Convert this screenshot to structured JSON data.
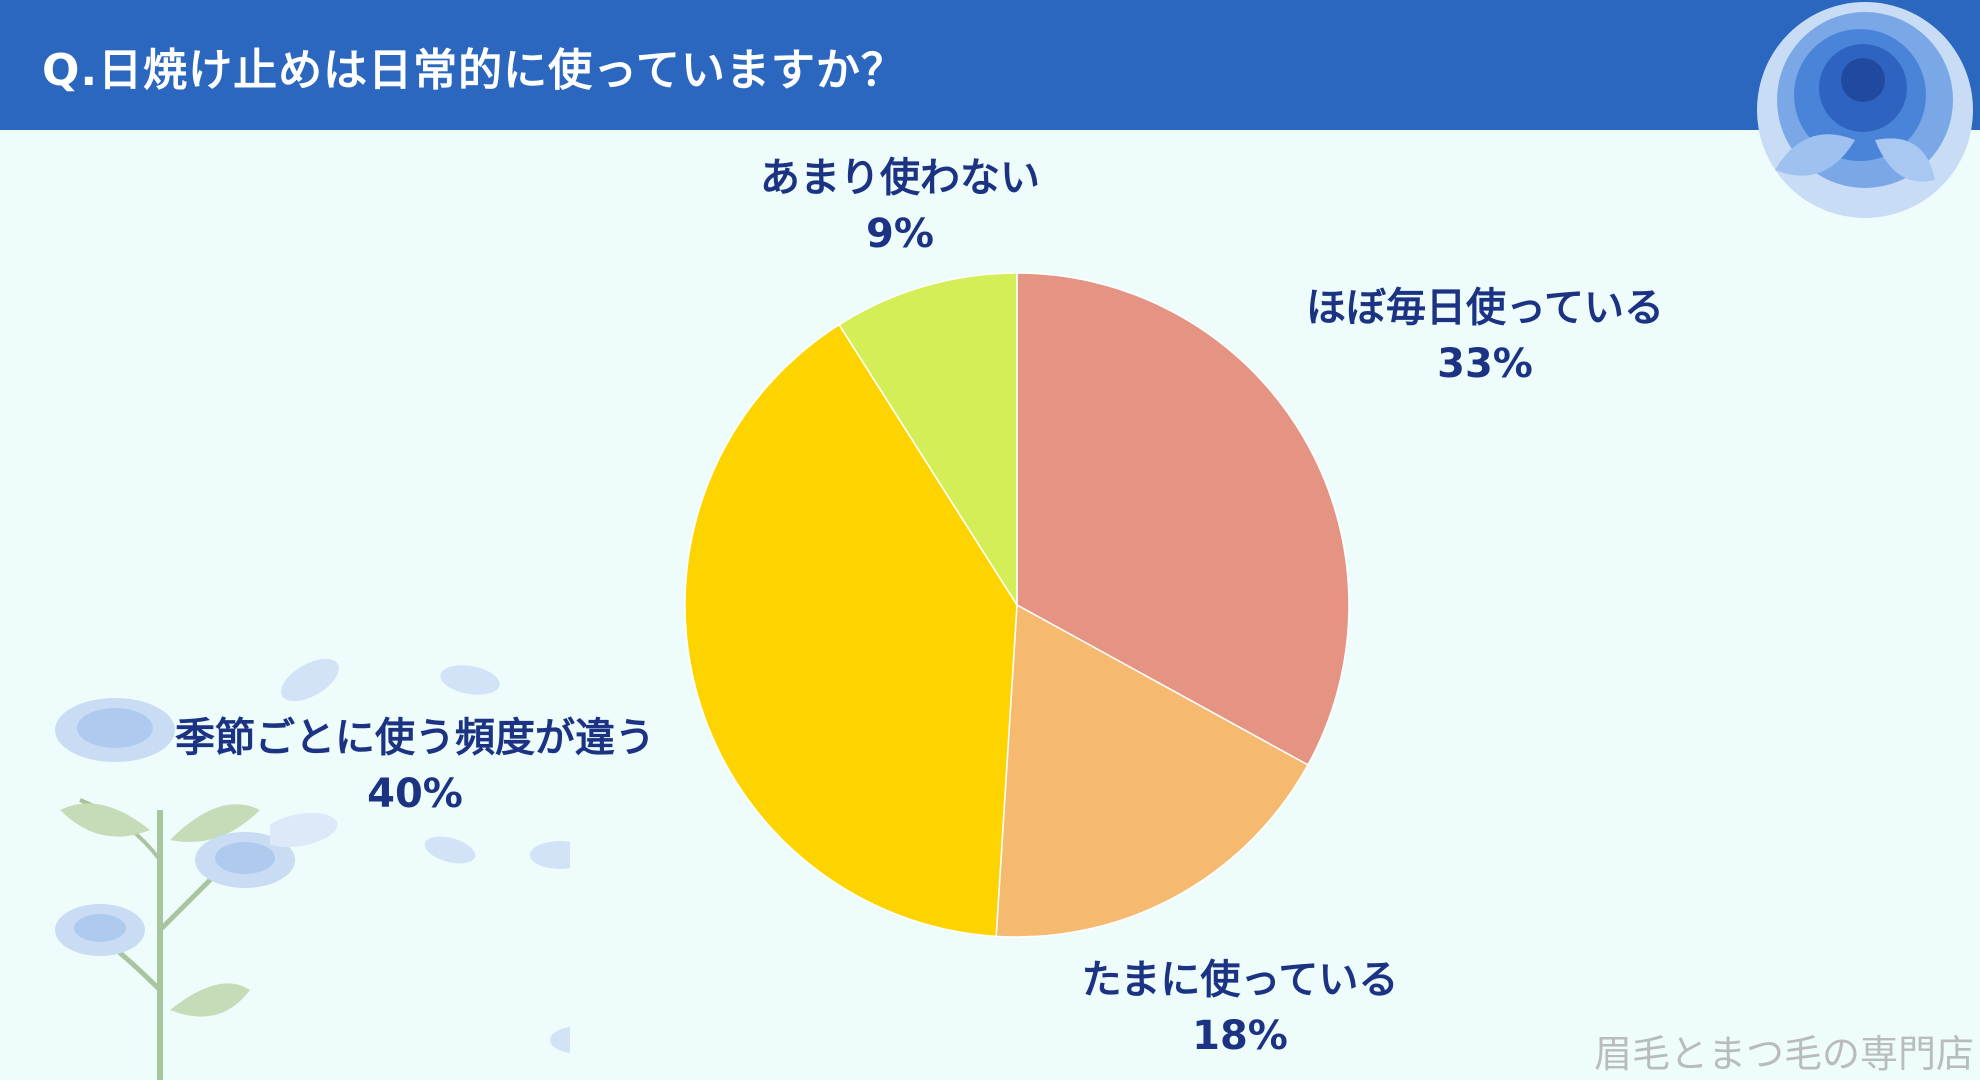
{
  "title": "Q.日焼け止めは日常的に使っていますか？",
  "watermark": "眉毛とまつ毛の専門店",
  "chart_data": {
    "type": "pie",
    "title": "Q.日焼け止めは日常的に使っていますか？",
    "slices": [
      {
        "label": "ほぼ毎日使っている",
        "value": 33,
        "value_label": "33%",
        "color": "#e59382"
      },
      {
        "label": "たまに使っている",
        "value": 18,
        "value_label": "18%",
        "color": "#f6b970"
      },
      {
        "label": "季節ごとに使う頻度が違う",
        "value": 40,
        "value_label": "40%",
        "color": "#fed400"
      },
      {
        "label": "あまり使わない",
        "value": 9,
        "value_label": "9%",
        "color": "#d4ee57"
      }
    ],
    "start_angle": "12 o'clock",
    "direction": "clockwise",
    "legend": "none"
  },
  "colors": {
    "header": "#2b66bf",
    "background": "#effcfc",
    "label_text": "#1b3382"
  },
  "decorations": [
    "blue-rose-icon",
    "rose-branch-icon",
    "petal-icon"
  ]
}
